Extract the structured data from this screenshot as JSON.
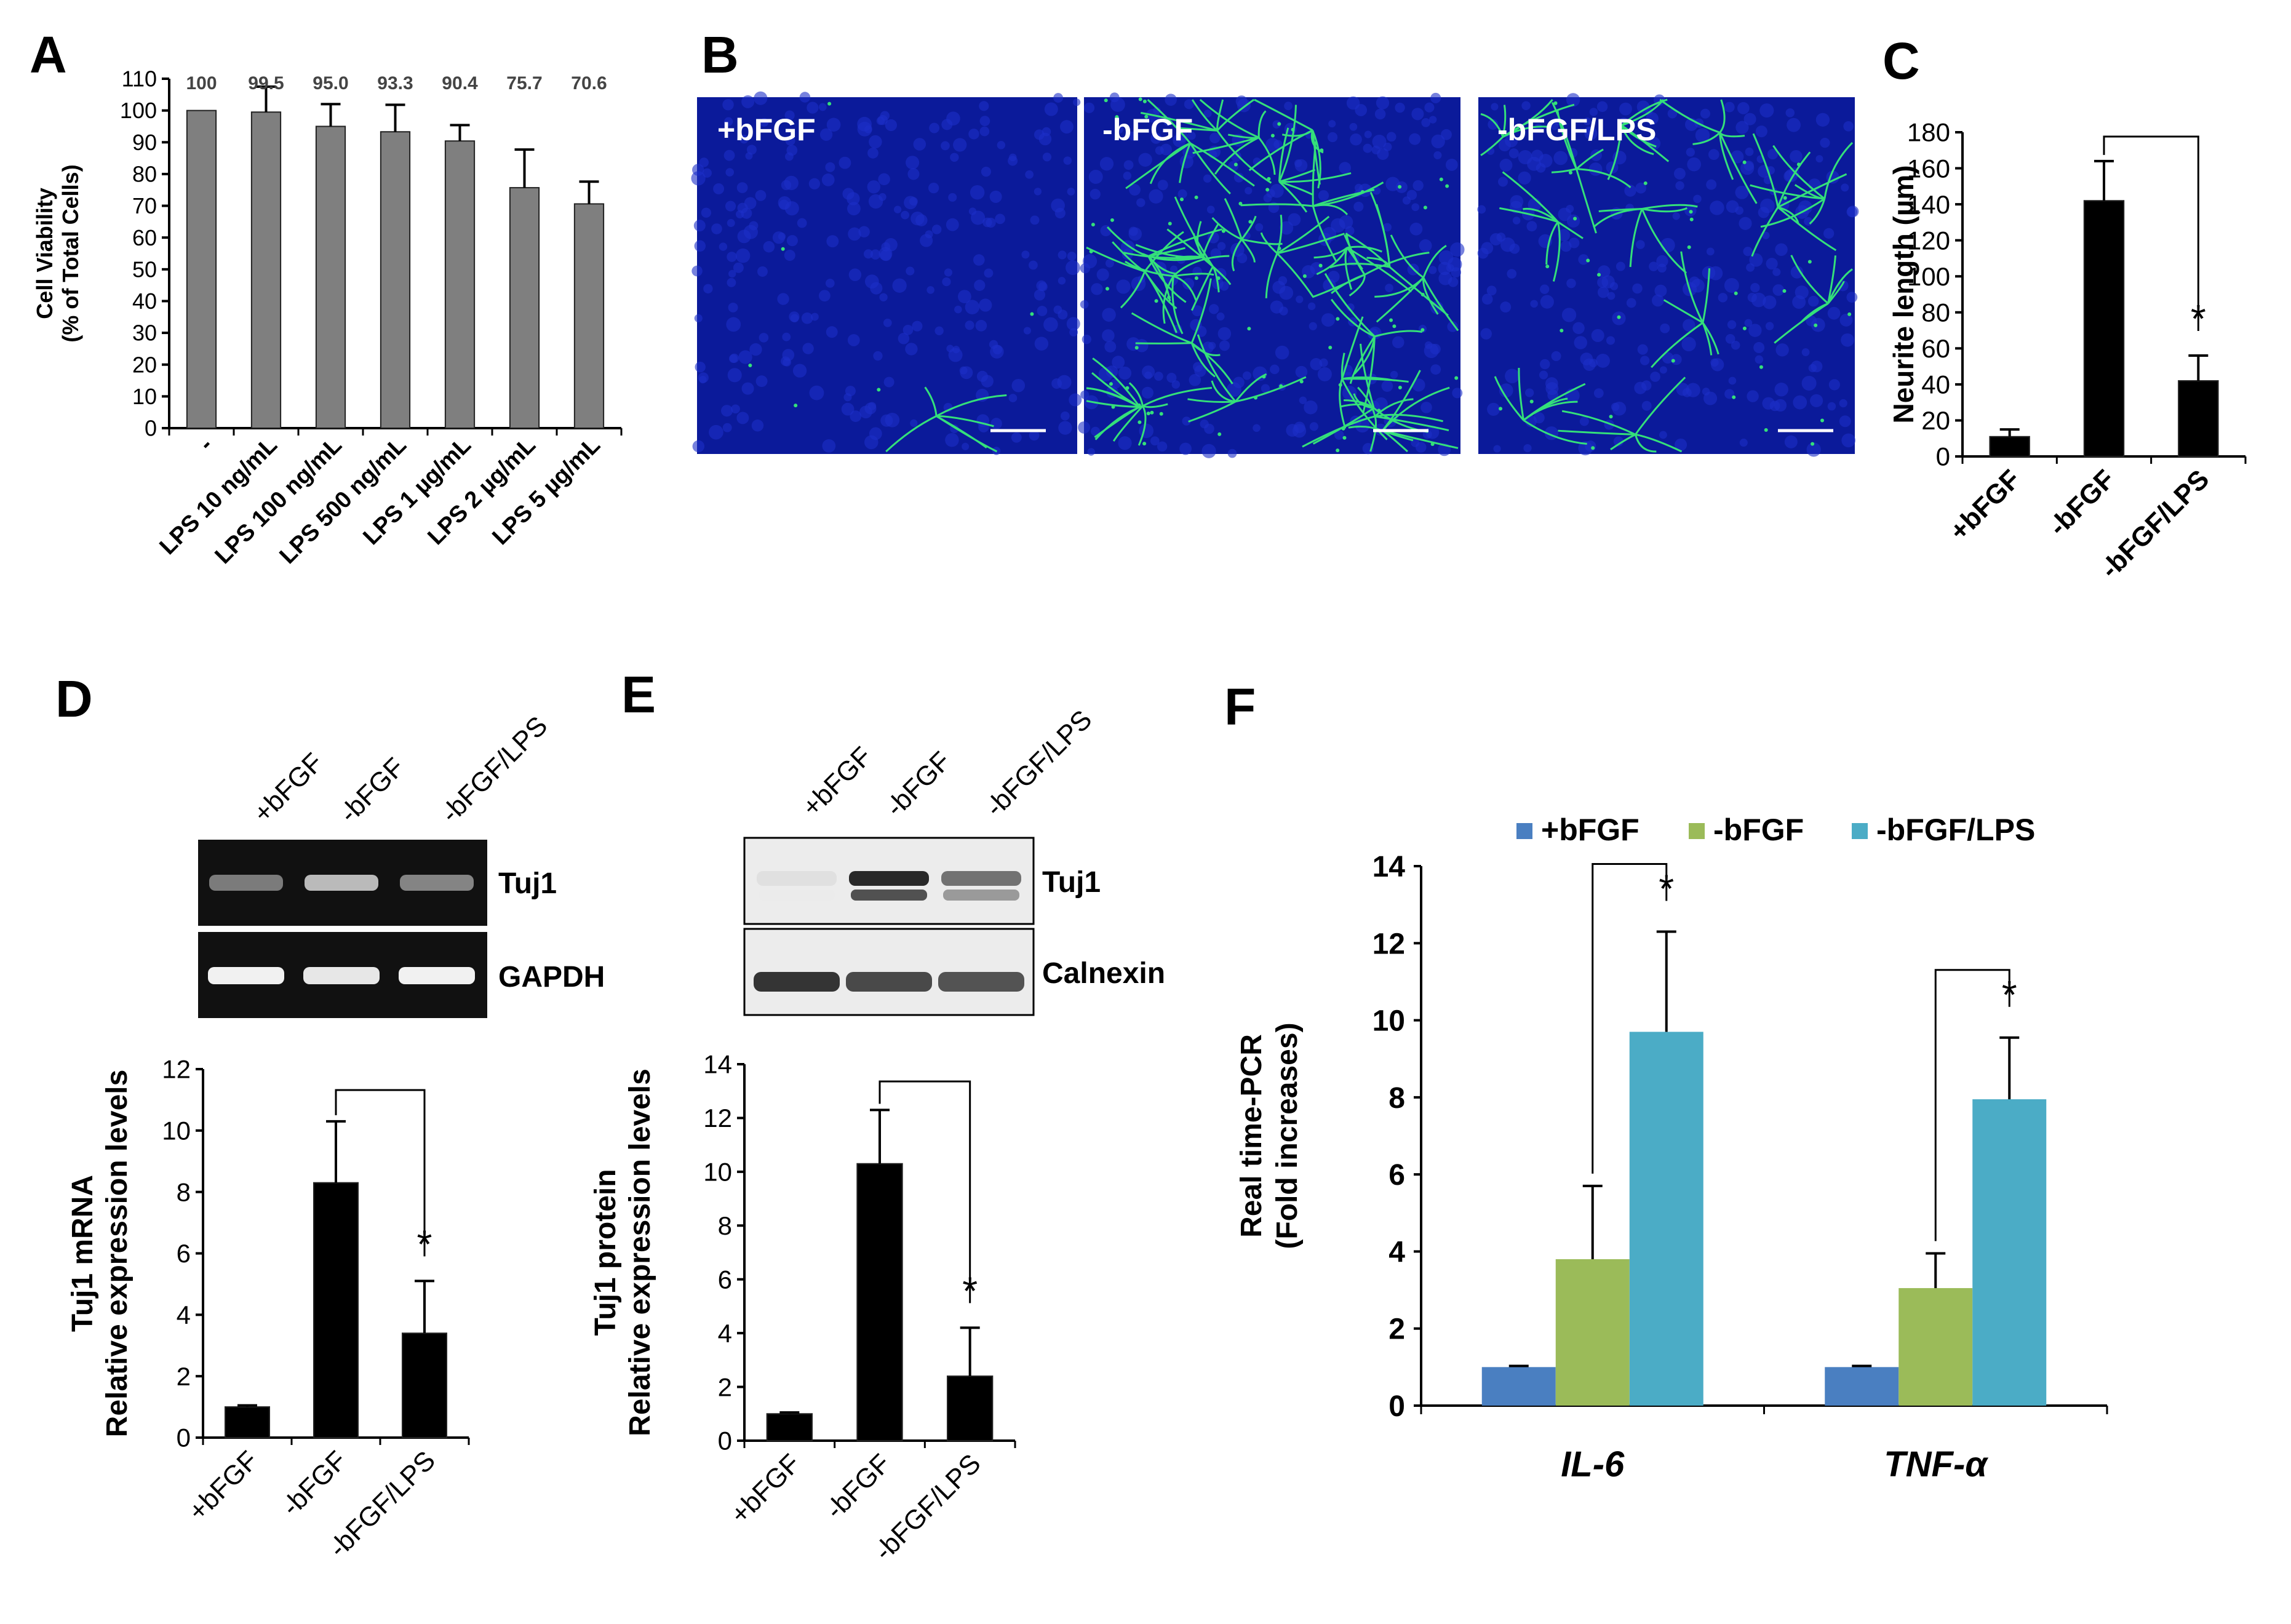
{
  "panel_letters": [
    "A",
    "B",
    "C",
    "D",
    "E",
    "F"
  ],
  "colors": {
    "grey_bar": "#7f7f7f",
    "black_bar": "#000000",
    "micro_bg": "#0b1a9a",
    "micro_green": "#34e07a",
    "bfgf_blue": "#4a7fc1",
    "nobfgf_green": "#9bbb59",
    "lps_teal": "#4bacc6",
    "gel_bg": "#111111",
    "blot_bg": "#ececec"
  },
  "micrographs": {
    "labels": [
      "+bFGF",
      "-bFGF",
      "-bFGF/LPS"
    ],
    "neurite_density": [
      0.04,
      1.0,
      0.45
    ]
  },
  "gel": {
    "lane_labels": [
      "+bFGF",
      "-bFGF",
      "-bFGF/LPS"
    ],
    "band_labels": [
      "Tuj1",
      "GAPDH"
    ],
    "tuj1_intensity": [
      0.35,
      0.7,
      0.4
    ],
    "gapdh_intensity": [
      0.95,
      0.9,
      0.95
    ]
  },
  "blot": {
    "lane_labels": [
      "+bFGF",
      "-bFGF",
      "-bFGF/LPS"
    ],
    "band_labels": [
      "Tuj1",
      "Calnexin"
    ],
    "tuj1_intensity": [
      0.03,
      0.9,
      0.55
    ],
    "calnexin_intensity": [
      0.85,
      0.75,
      0.7
    ]
  },
  "chart_data": [
    {
      "panel": "A",
      "type": "bar",
      "categories": [
        "-",
        "LPS 10 ng/mL",
        "LPS 100 ng/mL",
        "LPS 500 ng/mL",
        "LPS 1 µg/mL",
        "LPS 2 µg/mL",
        "LPS 5 µg/mL"
      ],
      "values": [
        100,
        99.5,
        95.0,
        93.3,
        90.4,
        75.7,
        70.6
      ],
      "errors": [
        0,
        8,
        7,
        8.5,
        5,
        12,
        7
      ],
      "value_labels": [
        "100",
        "99.5",
        "95.0",
        "93.3",
        "90.4",
        "75.7",
        "70.6"
      ],
      "ylabel": [
        "Cell Viability",
        "(% of Total Cells)"
      ],
      "ylim": [
        0,
        110
      ],
      "yticks": [
        0,
        10,
        20,
        30,
        40,
        50,
        60,
        70,
        80,
        90,
        100,
        110
      ]
    },
    {
      "panel": "C",
      "type": "bar",
      "categories": [
        "+bFGF",
        "-bFGF",
        "-bFGF/LPS"
      ],
      "values": [
        11,
        142,
        42
      ],
      "errors": [
        4,
        22,
        14
      ],
      "ylabel": [
        "Neurite length (µm)"
      ],
      "ylim": [
        0,
        180
      ],
      "yticks": [
        0,
        20,
        40,
        60,
        80,
        100,
        120,
        140,
        160,
        180
      ],
      "significance": {
        "from": 1,
        "to": 2,
        "label": "*"
      }
    },
    {
      "panel": "D",
      "type": "bar",
      "categories": [
        "+bFGF",
        "-bFGF",
        "-bFGF/LPS"
      ],
      "values": [
        1.0,
        8.3,
        3.4
      ],
      "errors": [
        0.05,
        2.0,
        1.7
      ],
      "ylabel": [
        "Tuj1 mRNA",
        "Relative expression levels"
      ],
      "ylim": [
        0,
        12
      ],
      "yticks": [
        0,
        2,
        4,
        6,
        8,
        10,
        12
      ],
      "significance": {
        "from": 1,
        "to": 2,
        "label": "*"
      }
    },
    {
      "panel": "E",
      "type": "bar",
      "categories": [
        "+bFGF",
        "-bFGF",
        "-bFGF/LPS"
      ],
      "values": [
        1.0,
        10.3,
        2.4
      ],
      "errors": [
        0.05,
        2.0,
        1.8
      ],
      "ylabel": [
        "Tuj1 protein",
        "Relative expression levels"
      ],
      "ylim": [
        0,
        14
      ],
      "yticks": [
        0,
        2,
        4,
        6,
        8,
        10,
        12,
        14
      ],
      "significance": {
        "from": 1,
        "to": 2,
        "label": "*"
      }
    },
    {
      "panel": "F",
      "type": "bar",
      "categories": [
        "IL-6",
        "TNF-α"
      ],
      "series": [
        {
          "name": "+bFGF",
          "values": [
            1.0,
            1.0
          ],
          "errors": [
            0.03,
            0.03
          ]
        },
        {
          "name": "-bFGF",
          "values": [
            3.8,
            3.05
          ],
          "errors": [
            1.9,
            0.9
          ]
        },
        {
          "name": "-bFGF/LPS",
          "values": [
            9.7,
            7.95
          ],
          "errors": [
            2.6,
            1.6
          ]
        }
      ],
      "ylabel": [
        "Real time-PCR",
        "(Fold increases)"
      ],
      "ylim": [
        0,
        14
      ],
      "yticks": [
        0,
        2,
        4,
        6,
        8,
        10,
        12,
        14
      ],
      "legend": "top",
      "significance": [
        {
          "category": 0,
          "from": 1,
          "to": 2,
          "label": "*"
        },
        {
          "category": 1,
          "from": 1,
          "to": 2,
          "label": "*"
        }
      ]
    }
  ]
}
